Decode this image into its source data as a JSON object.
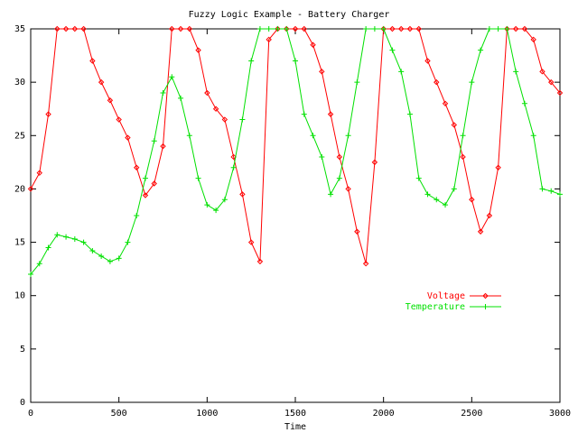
{
  "chart_data": {
    "type": "line",
    "title": "Fuzzy Logic Example - Battery Charger",
    "x_label": "Time",
    "x": [
      0,
      50,
      100,
      150,
      200,
      250,
      300,
      350,
      400,
      450,
      500,
      550,
      600,
      650,
      700,
      750,
      800,
      850,
      900,
      950,
      1000,
      1050,
      1100,
      1150,
      1200,
      1250,
      1300,
      1350,
      1400,
      1450,
      1500,
      1550,
      1600,
      1650,
      1700,
      1750,
      1800,
      1850,
      1900,
      1950,
      2000,
      2050,
      2100,
      2150,
      2200,
      2250,
      2300,
      2350,
      2400,
      2450,
      2500,
      2550,
      2600,
      2650,
      2700,
      2750,
      2800,
      2850,
      2900,
      2950,
      3000
    ],
    "series": [
      {
        "name": "Voltage",
        "color": "#ff0000",
        "marker": "diamond",
        "values": [
          20,
          21.5,
          27,
          35,
          35,
          35,
          35,
          32,
          30,
          28.3,
          26.5,
          24.8,
          22,
          19.4,
          20.5,
          24,
          35,
          35,
          35,
          33,
          29,
          27.5,
          26.5,
          23,
          19.5,
          15,
          13.2,
          34,
          35,
          35,
          35,
          35,
          33.5,
          31,
          27,
          23,
          20,
          16,
          13,
          22.5,
          35,
          35,
          35,
          35,
          35,
          32,
          30,
          28,
          26,
          23,
          19,
          16,
          17.5,
          22,
          35,
          35,
          35,
          34,
          31,
          30,
          29
        ]
      },
      {
        "name": "Temperature",
        "color": "#00e000",
        "marker": "plus",
        "values": [
          12,
          13,
          14.5,
          15.7,
          15.5,
          15.3,
          15,
          14.2,
          13.7,
          13.2,
          13.5,
          15,
          17.5,
          21,
          24.5,
          29,
          30.5,
          28.5,
          25,
          21,
          18.5,
          18,
          19,
          22,
          26.5,
          32,
          35,
          35,
          35,
          35,
          32,
          27,
          25,
          23,
          19.5,
          21,
          25,
          30,
          35,
          35,
          35,
          33,
          31,
          27,
          21,
          19.5,
          19,
          18.5,
          20,
          25,
          30,
          33,
          35,
          35,
          35,
          31,
          28,
          25,
          20,
          19.8,
          19.5
        ]
      }
    ],
    "xlim": [
      0,
      3000
    ],
    "xticks": [
      0,
      500,
      1000,
      1500,
      2000,
      2500,
      3000
    ],
    "ylim": [
      0,
      35
    ],
    "yticks": [
      0,
      5,
      10,
      15,
      20,
      25,
      30,
      35
    ],
    "grid": false,
    "legend": "right"
  }
}
